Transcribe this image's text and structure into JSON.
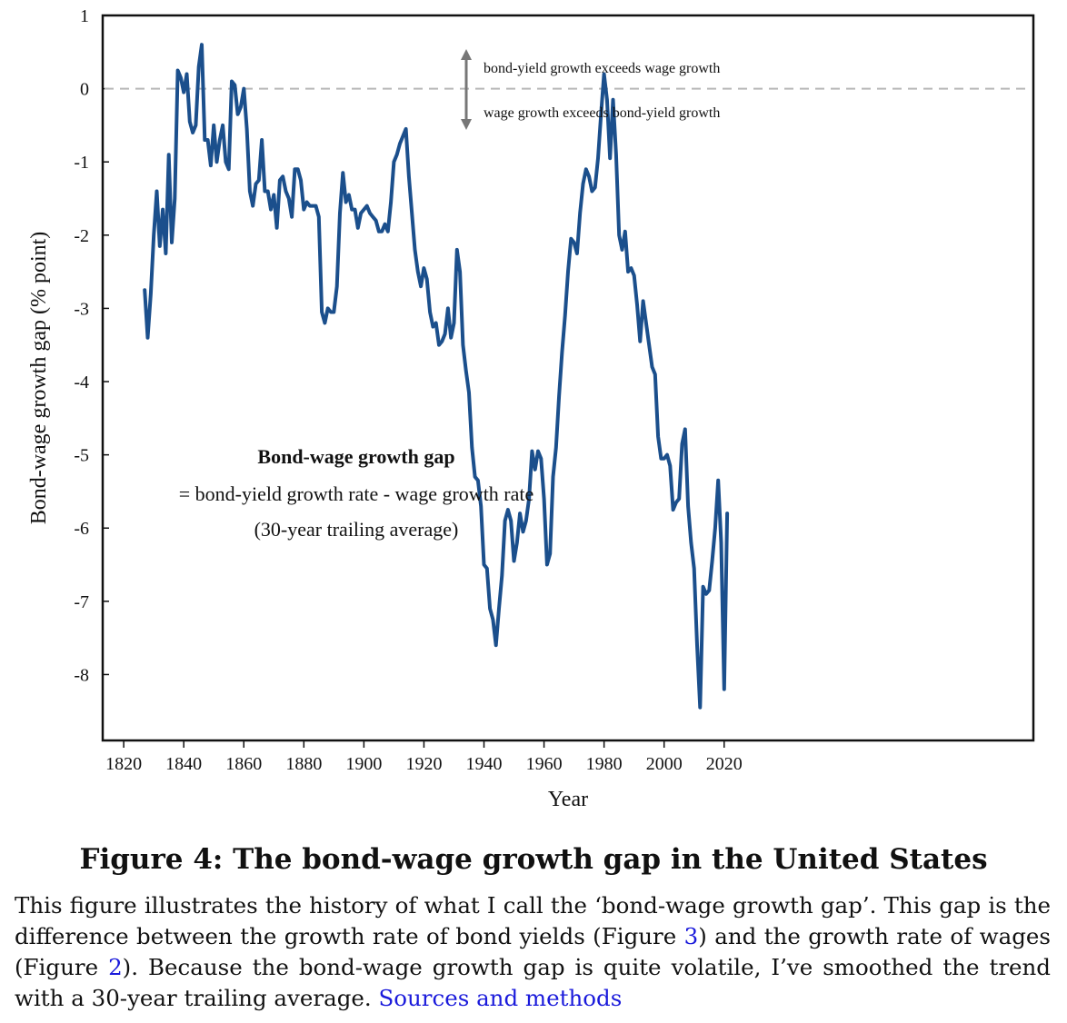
{
  "chart_data": {
    "type": "line",
    "xlabel": "Year",
    "ylabel": "Bond-wage growth gap (% point)",
    "xlim": [
      1813,
      2123
    ],
    "ylim": [
      -8.9,
      1
    ],
    "xticks": [
      1820,
      1840,
      1860,
      1880,
      1900,
      1920,
      1940,
      1960,
      1980,
      2000,
      2020
    ],
    "yticks": [
      1,
      0,
      -1,
      -2,
      -3,
      -4,
      -5,
      -6,
      -7,
      -8
    ],
    "grid": false,
    "reference_line": {
      "y": 0,
      "style": "dashed"
    },
    "annotations": {
      "above": "bond-yield growth exceeds wage growth",
      "below": "wage growth exceeds bond-yield growth",
      "formula_title": "Bond-wage growth gap",
      "formula_line1": "= bond-yield growth rate - wage growth rate",
      "formula_line2": "(30-year trailing average)"
    },
    "series": [
      {
        "color": "#1b4f8c",
        "points": [
          [
            1827,
            -2.75
          ],
          [
            1828,
            -3.4
          ],
          [
            1829,
            -2.8
          ],
          [
            1830,
            -2.0
          ],
          [
            1831,
            -1.4
          ],
          [
            1832,
            -2.15
          ],
          [
            1833,
            -1.65
          ],
          [
            1834,
            -2.25
          ],
          [
            1835,
            -0.9
          ],
          [
            1836,
            -2.1
          ],
          [
            1837,
            -1.5
          ],
          [
            1838,
            0.25
          ],
          [
            1839,
            0.15
          ],
          [
            1840,
            -0.05
          ],
          [
            1841,
            0.2
          ],
          [
            1842,
            -0.45
          ],
          [
            1843,
            -0.6
          ],
          [
            1844,
            -0.5
          ],
          [
            1845,
            0.3
          ],
          [
            1846,
            0.6
          ],
          [
            1847,
            -0.7
          ],
          [
            1848,
            -0.7
          ],
          [
            1849,
            -1.05
          ],
          [
            1850,
            -0.5
          ],
          [
            1851,
            -1.0
          ],
          [
            1852,
            -0.7
          ],
          [
            1853,
            -0.5
          ],
          [
            1854,
            -1.0
          ],
          [
            1855,
            -1.1
          ],
          [
            1856,
            0.1
          ],
          [
            1857,
            0.05
          ],
          [
            1858,
            -0.35
          ],
          [
            1859,
            -0.25
          ],
          [
            1860,
            0.0
          ],
          [
            1861,
            -0.55
          ],
          [
            1862,
            -1.4
          ],
          [
            1863,
            -1.6
          ],
          [
            1864,
            -1.3
          ],
          [
            1865,
            -1.25
          ],
          [
            1866,
            -0.7
          ],
          [
            1867,
            -1.4
          ],
          [
            1868,
            -1.4
          ],
          [
            1869,
            -1.65
          ],
          [
            1870,
            -1.45
          ],
          [
            1871,
            -1.9
          ],
          [
            1872,
            -1.25
          ],
          [
            1873,
            -1.2
          ],
          [
            1874,
            -1.4
          ],
          [
            1875,
            -1.5
          ],
          [
            1876,
            -1.75
          ],
          [
            1877,
            -1.1
          ],
          [
            1878,
            -1.1
          ],
          [
            1879,
            -1.25
          ],
          [
            1880,
            -1.65
          ],
          [
            1881,
            -1.55
          ],
          [
            1882,
            -1.6
          ],
          [
            1883,
            -1.6
          ],
          [
            1884,
            -1.6
          ],
          [
            1885,
            -1.75
          ],
          [
            1886,
            -3.05
          ],
          [
            1887,
            -3.2
          ],
          [
            1888,
            -3.0
          ],
          [
            1889,
            -3.05
          ],
          [
            1890,
            -3.05
          ],
          [
            1891,
            -2.7
          ],
          [
            1892,
            -1.7
          ],
          [
            1893,
            -1.15
          ],
          [
            1894,
            -1.55
          ],
          [
            1895,
            -1.45
          ],
          [
            1896,
            -1.65
          ],
          [
            1897,
            -1.65
          ],
          [
            1898,
            -1.9
          ],
          [
            1899,
            -1.7
          ],
          [
            1900,
            -1.65
          ],
          [
            1901,
            -1.6
          ],
          [
            1902,
            -1.7
          ],
          [
            1903,
            -1.75
          ],
          [
            1904,
            -1.8
          ],
          [
            1905,
            -1.95
          ],
          [
            1906,
            -1.95
          ],
          [
            1907,
            -1.85
          ],
          [
            1908,
            -1.95
          ],
          [
            1909,
            -1.55
          ],
          [
            1910,
            -1.0
          ],
          [
            1911,
            -0.9
          ],
          [
            1912,
            -0.75
          ],
          [
            1913,
            -0.65
          ],
          [
            1914,
            -0.55
          ],
          [
            1915,
            -1.2
          ],
          [
            1916,
            -1.7
          ],
          [
            1917,
            -2.2
          ],
          [
            1918,
            -2.5
          ],
          [
            1919,
            -2.7
          ],
          [
            1920,
            -2.45
          ],
          [
            1921,
            -2.6
          ],
          [
            1922,
            -3.05
          ],
          [
            1923,
            -3.25
          ],
          [
            1924,
            -3.2
          ],
          [
            1925,
            -3.5
          ],
          [
            1926,
            -3.45
          ],
          [
            1927,
            -3.35
          ],
          [
            1928,
            -3.0
          ],
          [
            1929,
            -3.4
          ],
          [
            1930,
            -3.2
          ],
          [
            1931,
            -2.2
          ],
          [
            1932,
            -2.5
          ],
          [
            1933,
            -3.5
          ],
          [
            1934,
            -3.85
          ],
          [
            1935,
            -4.15
          ],
          [
            1936,
            -4.9
          ],
          [
            1937,
            -5.3
          ],
          [
            1938,
            -5.35
          ],
          [
            1939,
            -5.7
          ],
          [
            1940,
            -6.5
          ],
          [
            1941,
            -6.55
          ],
          [
            1942,
            -7.1
          ],
          [
            1943,
            -7.25
          ],
          [
            1944,
            -7.6
          ],
          [
            1945,
            -7.1
          ],
          [
            1946,
            -6.65
          ],
          [
            1947,
            -5.9
          ],
          [
            1948,
            -5.75
          ],
          [
            1949,
            -5.9
          ],
          [
            1950,
            -6.45
          ],
          [
            1951,
            -6.2
          ],
          [
            1952,
            -5.8
          ],
          [
            1953,
            -6.05
          ],
          [
            1954,
            -5.9
          ],
          [
            1955,
            -5.6
          ],
          [
            1956,
            -4.95
          ],
          [
            1957,
            -5.2
          ],
          [
            1958,
            -4.95
          ],
          [
            1959,
            -5.05
          ],
          [
            1960,
            -5.6
          ],
          [
            1961,
            -6.5
          ],
          [
            1962,
            -6.35
          ],
          [
            1963,
            -5.3
          ],
          [
            1964,
            -4.9
          ],
          [
            1965,
            -4.2
          ],
          [
            1966,
            -3.6
          ],
          [
            1967,
            -3.1
          ],
          [
            1968,
            -2.5
          ],
          [
            1969,
            -2.05
          ],
          [
            1970,
            -2.1
          ],
          [
            1971,
            -2.25
          ],
          [
            1972,
            -1.7
          ],
          [
            1973,
            -1.3
          ],
          [
            1974,
            -1.1
          ],
          [
            1975,
            -1.2
          ],
          [
            1976,
            -1.4
          ],
          [
            1977,
            -1.35
          ],
          [
            1978,
            -0.95
          ],
          [
            1979,
            -0.35
          ],
          [
            1980,
            0.2
          ],
          [
            1981,
            -0.15
          ],
          [
            1982,
            -0.95
          ],
          [
            1983,
            -0.15
          ],
          [
            1984,
            -0.9
          ],
          [
            1985,
            -2.0
          ],
          [
            1986,
            -2.2
          ],
          [
            1987,
            -1.95
          ],
          [
            1988,
            -2.5
          ],
          [
            1989,
            -2.45
          ],
          [
            1990,
            -2.55
          ],
          [
            1991,
            -2.95
          ],
          [
            1992,
            -3.45
          ],
          [
            1993,
            -2.9
          ],
          [
            1994,
            -3.2
          ],
          [
            1995,
            -3.5
          ],
          [
            1996,
            -3.8
          ],
          [
            1997,
            -3.9
          ],
          [
            1998,
            -4.75
          ],
          [
            1999,
            -5.05
          ],
          [
            2000,
            -5.05
          ],
          [
            2001,
            -5.0
          ],
          [
            2002,
            -5.15
          ],
          [
            2003,
            -5.75
          ],
          [
            2004,
            -5.65
          ],
          [
            2005,
            -5.6
          ],
          [
            2006,
            -4.85
          ],
          [
            2007,
            -4.65
          ],
          [
            2008,
            -5.7
          ],
          [
            2009,
            -6.2
          ],
          [
            2010,
            -6.55
          ],
          [
            2011,
            -7.6
          ],
          [
            2012,
            -8.45
          ],
          [
            2013,
            -6.8
          ],
          [
            2014,
            -6.9
          ],
          [
            2015,
            -6.85
          ],
          [
            2016,
            -6.45
          ],
          [
            2017,
            -6.0
          ],
          [
            2018,
            -5.35
          ],
          [
            2019,
            -6.2
          ],
          [
            2020,
            -8.2
          ],
          [
            2021,
            -5.8
          ]
        ]
      }
    ]
  },
  "figure": {
    "title": "Figure 4: The bond-wage growth gap in the United States",
    "caption_part1": "This figure illustrates the history of what I call the ‘bond-wage growth gap’. This gap is the difference between the growth rate of bond yields (Figure ",
    "caption_ref3": "3",
    "caption_part2": ") and the growth rate of wages (Figure ",
    "caption_ref2": "2",
    "caption_part3": "). Because the bond-wage growth gap is quite volatile, I’ve smoothed the trend with a 30-year trailing average. ",
    "caption_link": "Sources and methods"
  }
}
